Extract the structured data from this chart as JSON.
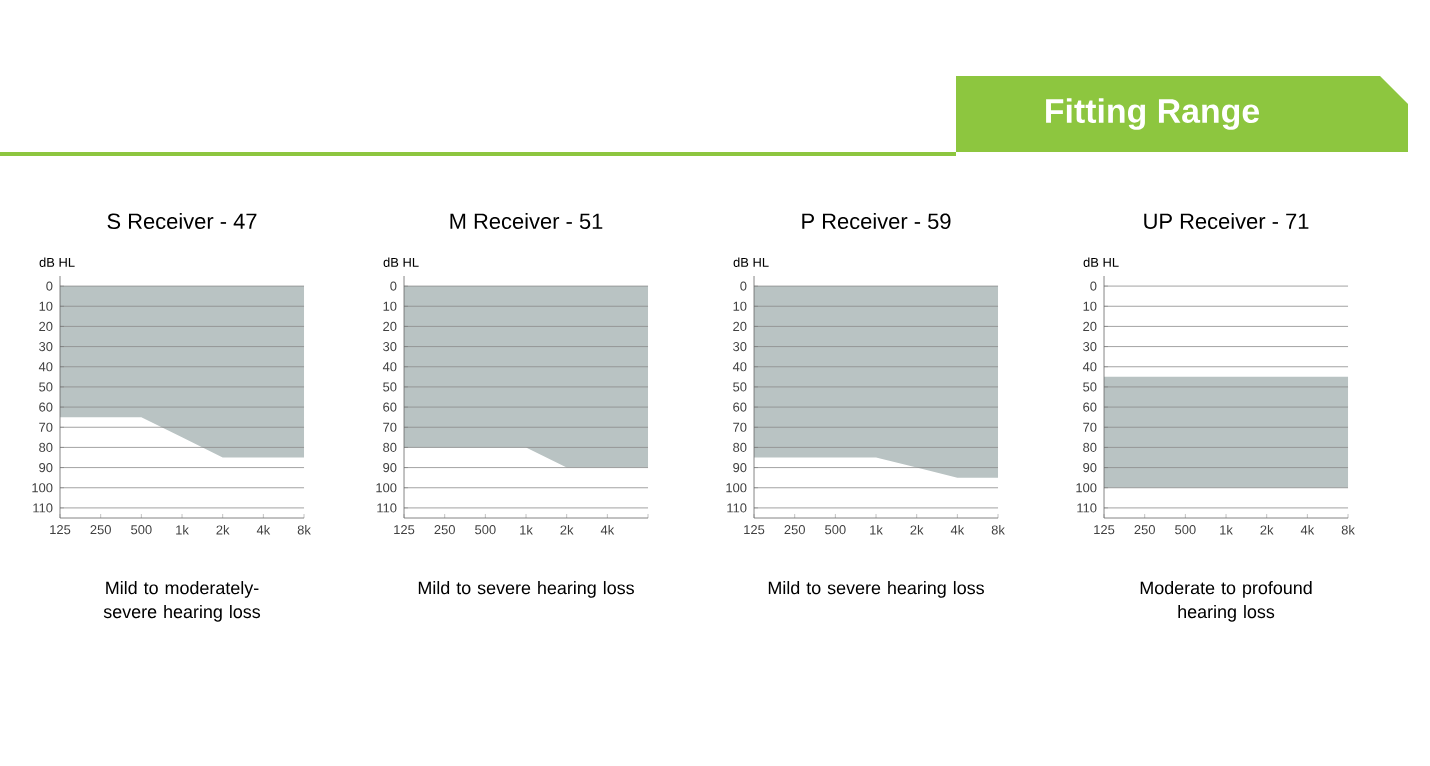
{
  "chart_data": [
    {
      "type": "area",
      "title": "S Receiver - 47",
      "ylabel": "dB HL",
      "annotations": [
        "Fitting Range",
        "Mild to moderately-severe hearing loss"
      ],
      "log": "x",
      "grid": "y",
      "xlim": [
        125,
        8000
      ],
      "ylim": [
        115,
        -5
      ],
      "xticks": [
        125,
        250,
        500,
        {
          "value": 1000,
          "label": "1k"
        },
        {
          "value": 2000,
          "label": "2k"
        },
        {
          "value": 4000,
          "label": "4k"
        },
        {
          "value": 8000,
          "label": "8k"
        }
      ],
      "yticks": [
        0,
        10,
        20,
        30,
        40,
        50,
        60,
        70,
        80,
        90,
        100,
        110
      ],
      "x": [
        125,
        250,
        500,
        1000,
        2000,
        4000,
        8000
      ],
      "series": [
        {
          "color": "#b9c3c3",
          "values": [
            65,
            65,
            65,
            75,
            85,
            85,
            85
          ]
        }
      ]
    },
    {
      "type": "area",
      "title": "M Receiver - 51",
      "ylabel": "dB HL",
      "annotations": [
        "Mild to severe hearing loss"
      ],
      "log": "x",
      "grid": "y",
      "xlim": [
        125,
        8000
      ],
      "ylim": [
        115,
        -5
      ],
      "xticks": [
        125,
        250,
        500,
        {
          "value": 1000,
          "label": "1k"
        },
        {
          "value": 2000,
          "label": "2k"
        },
        {
          "value": 4000,
          "label": "4k"
        },
        {
          "value": 8000,
          "label": null
        }
      ],
      "yticks": [
        0,
        10,
        20,
        30,
        40,
        50,
        60,
        70,
        80,
        90,
        100,
        110
      ],
      "x": [
        125,
        250,
        500,
        1000,
        2000,
        4000,
        8000
      ],
      "series": [
        {
          "color": "#b9c3c3",
          "values": [
            80,
            80,
            80,
            80,
            90,
            90,
            90
          ]
        }
      ]
    },
    {
      "type": "area",
      "title": "P Receiver - 59",
      "ylabel": "dB HL",
      "annotations": [
        "Mild to severe hearing loss"
      ],
      "log": "x",
      "grid": "y",
      "xlim": [
        125,
        8000
      ],
      "ylim": [
        115,
        -5
      ],
      "xticks": [
        125,
        250,
        500,
        {
          "value": 1000,
          "label": "1k"
        },
        {
          "value": 2000,
          "label": "2k"
        },
        {
          "value": 4000,
          "label": "4k"
        },
        {
          "value": 8000,
          "label": "8k"
        }
      ],
      "yticks": [
        0,
        10,
        20,
        30,
        40,
        50,
        60,
        70,
        80,
        90,
        100,
        110
      ],
      "x": [
        125,
        250,
        500,
        1000,
        2000,
        4000,
        8000
      ],
      "series": [
        {
          "color": "#b9c3c3",
          "values": [
            85,
            85,
            85,
            85,
            90,
            95,
            95
          ]
        }
      ]
    },
    {
      "type": "area",
      "title": "UP Receiver - 71",
      "ylabel": "dB HL",
      "annotations": [
        "Moderate to profound hearing loss"
      ],
      "log": "x",
      "grid": "y",
      "xlim": [
        125,
        8000
      ],
      "ylim": [
        115,
        -5
      ],
      "xticks": [
        125,
        250,
        500,
        {
          "value": 1000,
          "label": "1k"
        },
        {
          "value": 2000,
          "label": "2k"
        },
        {
          "value": 4000,
          "label": "4k"
        },
        {
          "value": 8000,
          "label": "8k"
        }
      ],
      "yticks": [
        0,
        10,
        20,
        30,
        40,
        50,
        60,
        70,
        80,
        90,
        100,
        110
      ],
      "bands": [
        {
          "axis": "y",
          "from": 45,
          "to": 100,
          "color": "#b9c3c3"
        }
      ]
    }
  ]
}
